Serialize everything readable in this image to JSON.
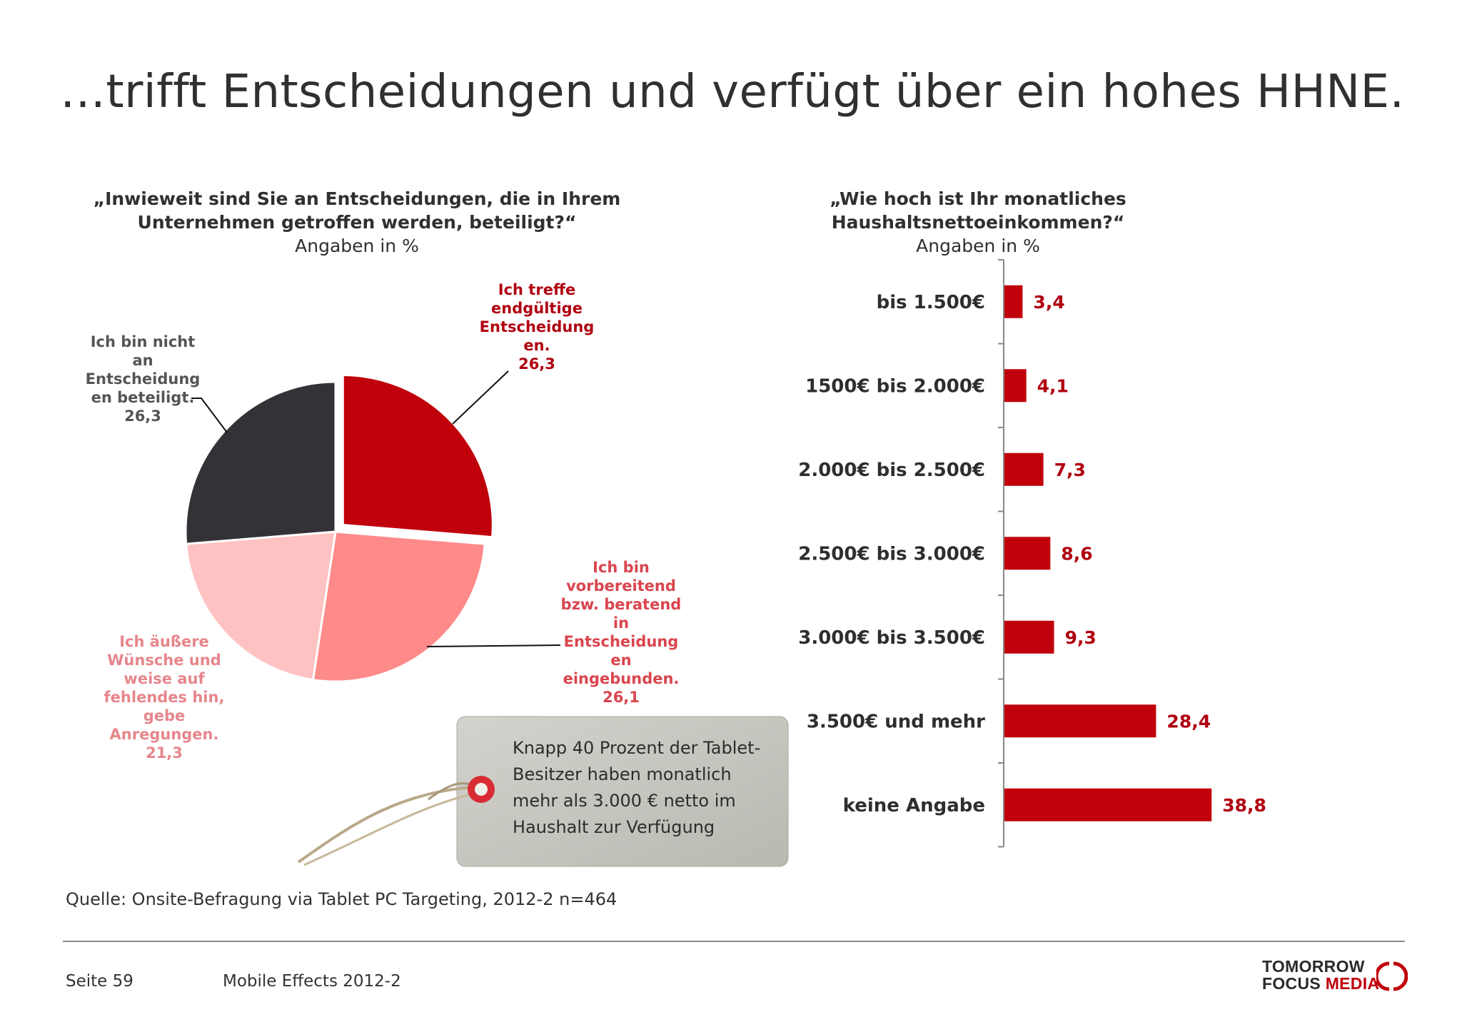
{
  "title": "…trifft Entscheidungen und verfügt über ein hohes HHNE.",
  "left_question": {
    "line1": "„Inwieweit sind Sie an Entscheidungen, die in Ihrem",
    "line2": "Unternehmen getroffen werden, beteiligt?“",
    "unit": "Angaben in %"
  },
  "right_question": {
    "line1": "„Wie hoch ist Ihr monatliches",
    "line2": "Haushaltsnettoeinkommen?“",
    "unit": "Angaben in %"
  },
  "chart_data": [
    {
      "type": "pie",
      "slices": [
        {
          "label_lines": [
            "Ich treffe",
            "endgültige",
            "Entscheidung",
            "en.",
            "26,3"
          ],
          "value": 26.3,
          "color": "#c0000b",
          "label_color": "#b00010",
          "exploded": true
        },
        {
          "label_lines": [
            "Ich bin",
            "vorbereitend",
            "bzw. beratend",
            "in",
            "Entscheidung",
            "en",
            "eingebunden.",
            "26,1"
          ],
          "value": 26.1,
          "color": "#ff8a8a",
          "label_color": "#d9454e"
        },
        {
          "label_lines": [
            "Ich äußere",
            "Wünsche und",
            "weise auf",
            "fehlendes hin,",
            "gebe",
            "Anregungen.",
            "21,3"
          ],
          "value": 21.3,
          "color": "#ffc2c2",
          "label_color": "#e6868c"
        },
        {
          "label_lines": [
            "Ich bin nicht",
            "an",
            "Entscheidung",
            "en beteiligt.",
            "26,3"
          ],
          "value": 26.3,
          "color": "#333236",
          "label_color": "#555555"
        }
      ]
    },
    {
      "type": "bar",
      "orientation": "horizontal",
      "categories": [
        "bis 1.500€",
        "1500€ bis 2.000€",
        "2.000€ bis 2.500€",
        "2.500€ bis 3.000€",
        "3.000€ bis 3.500€",
        "3.500€ und mehr",
        "keine Angabe"
      ],
      "values": [
        3.4,
        4.1,
        7.3,
        8.6,
        9.3,
        28.4,
        38.8
      ],
      "value_labels": [
        "3,4",
        "4,1",
        "7,3",
        "8,6",
        "9,3",
        "28,4",
        "38,8"
      ],
      "color": "#c0000b",
      "xlim": [
        0,
        40
      ]
    }
  ],
  "tag_note": [
    "Knapp 40 Prozent der Tablet-",
    "Besitzer haben monatlich",
    "mehr als 3.000 € netto im",
    "Haushalt zur Verfügung"
  ],
  "source": "Quelle: Onsite-Befragung via Tablet PC Targeting, 2012-2 n=464",
  "footer": {
    "page": "Seite 59",
    "doc_title": "Mobile Effects 2012-2",
    "logo_line1": "TOMORROW",
    "logo_line2a": "FOCUS",
    "logo_line2b": "MEDIA"
  }
}
